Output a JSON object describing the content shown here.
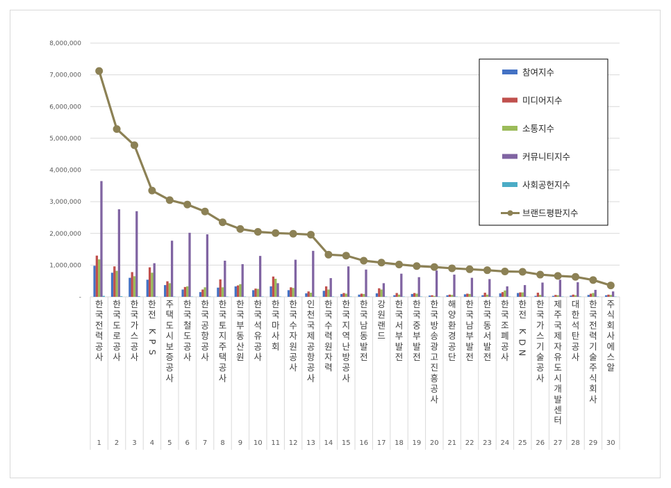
{
  "chart_data": {
    "type": "bar",
    "title": "",
    "xlabel": "",
    "ylabel": "",
    "ylim": [
      0,
      8000000
    ],
    "y_ticks": [
      "-",
      "1,000,000",
      "2,000,000",
      "3,000,000",
      "4,000,000",
      "5,000,000",
      "6,000,000",
      "7,000,000",
      "8,000,000"
    ],
    "grid": true,
    "legend_position": "top-right",
    "ranks": [
      "1",
      "2",
      "3",
      "4",
      "5",
      "6",
      "7",
      "8",
      "9",
      "10",
      "11",
      "12",
      "13",
      "14",
      "15",
      "16",
      "17",
      "18",
      "19",
      "20",
      "21",
      "22",
      "23",
      "24",
      "25",
      "26",
      "27",
      "28",
      "29",
      "30"
    ],
    "categories": [
      "한국전력공사",
      "한국도로공사",
      "한국가스공사",
      "한전KPS",
      "주택도시보증공사",
      "한국철도공사",
      "한국공항공사",
      "한국토지주택공사",
      "한국부동산원",
      "한국석유공사",
      "한국마사회",
      "한국수자원공사",
      "인천국제공항공사",
      "한국수력원자력",
      "한국지역난방공사",
      "한국남동발전",
      "강원랜드",
      "한국서부발전",
      "한국중부발전",
      "한국방송광고진흥공사",
      "해양환경공단",
      "한국남부발전",
      "한국동서발전",
      "한국조폐공사",
      "한전KDN",
      "한국가스기술공사",
      "제주국제자유도시개발센터",
      "대한석탄공사",
      "한국전력기술주식회사",
      "주식회사에스알"
    ],
    "series": [
      {
        "name": "참여지수",
        "type": "bar",
        "color": "#4472c4",
        "values": [
          980000,
          760000,
          600000,
          540000,
          370000,
          230000,
          150000,
          290000,
          330000,
          210000,
          330000,
          210000,
          110000,
          190000,
          90000,
          70000,
          110000,
          50000,
          90000,
          40000,
          50000,
          80000,
          50000,
          110000,
          120000,
          30000,
          30000,
          40000,
          60000,
          50000
        ]
      },
      {
        "name": "미디어지수",
        "type": "bar",
        "color": "#c0504d",
        "values": [
          1300000,
          960000,
          780000,
          930000,
          490000,
          310000,
          230000,
          550000,
          360000,
          260000,
          640000,
          300000,
          170000,
          330000,
          120000,
          100000,
          270000,
          120000,
          120000,
          50000,
          70000,
          100000,
          130000,
          150000,
          140000,
          130000,
          60000,
          70000,
          100000,
          70000
        ]
      },
      {
        "name": "소통지수",
        "type": "bar",
        "color": "#9bbb59",
        "values": [
          1180000,
          820000,
          650000,
          760000,
          430000,
          330000,
          300000,
          300000,
          400000,
          250000,
          570000,
          280000,
          130000,
          230000,
          100000,
          90000,
          230000,
          70000,
          100000,
          30000,
          60000,
          90000,
          70000,
          200000,
          140000,
          60000,
          50000,
          50000,
          120000,
          60000
        ]
      },
      {
        "name": "커뮤니티지수",
        "type": "bar",
        "color": "#8064a2",
        "values": [
          3650000,
          2760000,
          2700000,
          1060000,
          1770000,
          2020000,
          1970000,
          1140000,
          1030000,
          1290000,
          430000,
          1170000,
          1450000,
          590000,
          960000,
          860000,
          430000,
          730000,
          620000,
          830000,
          700000,
          600000,
          560000,
          330000,
          370000,
          450000,
          540000,
          460000,
          220000,
          170000
        ]
      },
      {
        "name": "사회공헌지수",
        "type": "bar",
        "color": "#4bacc6",
        "values": [
          30000,
          20000,
          20000,
          10000,
          10000,
          10000,
          10000,
          10000,
          10000,
          10000,
          10000,
          10000,
          10000,
          10000,
          10000,
          10000,
          10000,
          10000,
          10000,
          10000,
          10000,
          10000,
          10000,
          10000,
          10000,
          10000,
          10000,
          10000,
          10000,
          10000
        ]
      },
      {
        "name": "브랜드평판지수",
        "type": "line",
        "color": "#8c8155",
        "values": [
          7120000,
          5290000,
          4780000,
          3350000,
          3050000,
          2910000,
          2690000,
          2350000,
          2140000,
          2050000,
          2010000,
          1990000,
          1960000,
          1330000,
          1300000,
          1140000,
          1080000,
          1020000,
          970000,
          940000,
          900000,
          870000,
          840000,
          800000,
          790000,
          700000,
          660000,
          630000,
          530000,
          360000
        ]
      }
    ]
  }
}
